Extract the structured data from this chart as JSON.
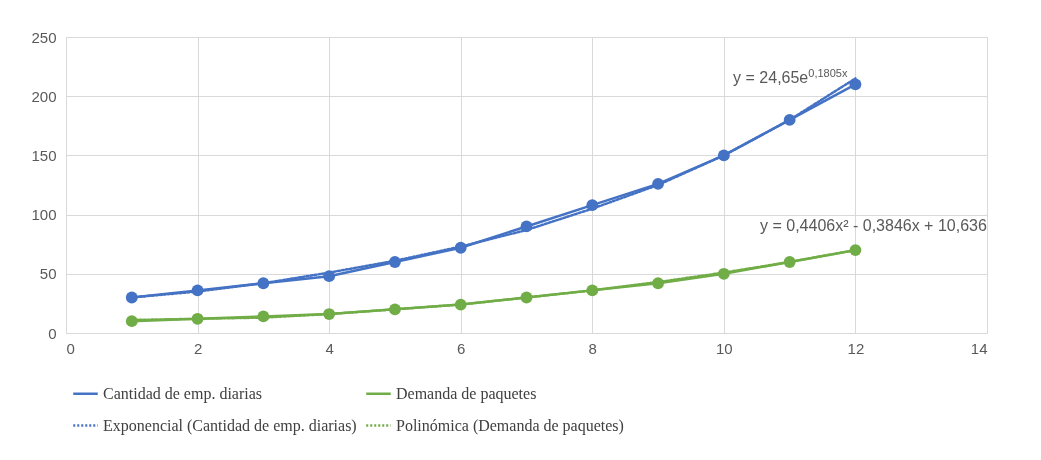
{
  "chart_data": {
    "type": "line",
    "x": [
      1,
      2,
      3,
      4,
      5,
      6,
      7,
      8,
      9,
      10,
      11,
      12
    ],
    "series": [
      {
        "name": "Cantidad de emp. diarias",
        "color": "#4472c4",
        "marker": "circle",
        "line_style": "solid",
        "values": [
          30,
          36,
          42,
          48,
          60,
          72,
          90,
          108,
          126,
          150,
          180,
          210
        ]
      },
      {
        "name": "Demanda de paquetes",
        "color": "#70ad47",
        "marker": "circle",
        "line_style": "solid",
        "values": [
          10,
          12,
          14,
          16,
          20,
          24,
          30,
          36,
          42,
          50,
          60,
          70
        ]
      },
      {
        "name": "Exponencial (Cantidad de emp. diarias)",
        "type": "line",
        "color": "#4472c4",
        "marker": "none",
        "line_style": "dotted",
        "x": [
          1,
          2,
          3,
          4,
          5,
          6,
          7,
          8,
          9,
          10,
          11,
          12
        ],
        "values": [
          30,
          35,
          42,
          51,
          61,
          73,
          87,
          105,
          125,
          150,
          180,
          215
        ]
      },
      {
        "name": "Polinómica (Demanda de paquetes)",
        "type": "line",
        "color": "#70ad47",
        "marker": "none",
        "line_style": "dotted",
        "x": [
          1,
          2,
          3,
          4,
          5,
          6,
          7,
          8,
          9,
          10,
          11,
          12
        ],
        "values": [
          11,
          12,
          13,
          16,
          20,
          24,
          30,
          36,
          43,
          51,
          60,
          70
        ]
      }
    ],
    "xlim": [
      0,
      14
    ],
    "xticks": [
      0,
      2,
      4,
      6,
      8,
      10,
      12,
      14
    ],
    "ylim": [
      0,
      250
    ],
    "yticks": [
      0,
      50,
      100,
      150,
      200,
      250
    ],
    "grid": true,
    "legend": "bottom",
    "annotations": [
      {
        "text": "y = 24,65e$^{0,1805x}$",
        "x": 12,
        "y": 215
      },
      {
        "text": "y = 0,4406x² - 0,3846x + 10,636",
        "x": 12,
        "y": 70
      }
    ]
  }
}
